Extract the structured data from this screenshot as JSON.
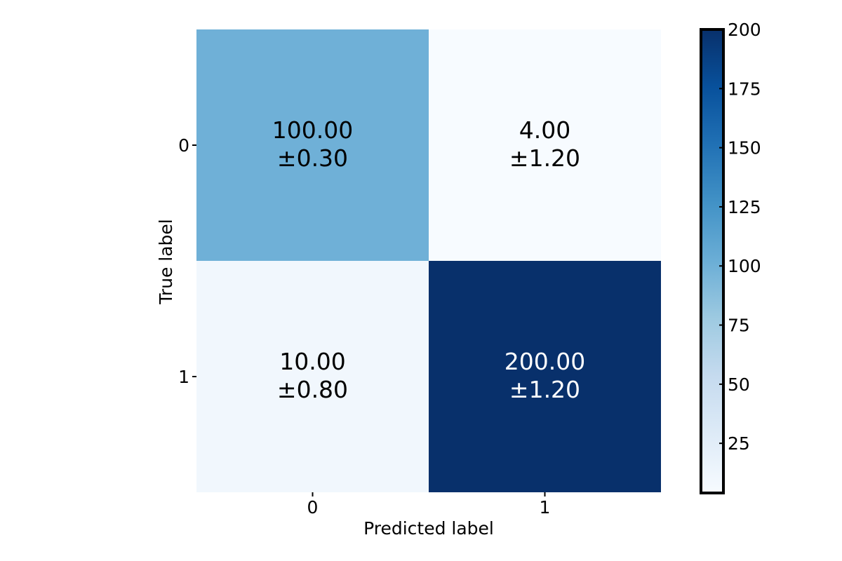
{
  "chart_data": {
    "type": "heatmap",
    "title": "",
    "xlabel": "Predicted label",
    "ylabel": "True label",
    "x_categories": [
      "0",
      "1"
    ],
    "y_categories": [
      "0",
      "1"
    ],
    "values": [
      [
        100.0,
        4.0
      ],
      [
        10.0,
        200.0
      ]
    ],
    "std": [
      [
        0.3,
        1.2
      ],
      [
        0.8,
        1.2
      ]
    ],
    "cell_labels": [
      [
        {
          "mean": "100.00",
          "std": "±0.30"
        },
        {
          "mean": "4.00",
          "std": "±1.20"
        }
      ],
      [
        {
          "mean": "10.00",
          "std": "±0.80"
        },
        {
          "mean": "200.00",
          "std": "±1.20"
        }
      ]
    ],
    "colormap": "Blues",
    "colorbar": {
      "range": [
        4,
        200
      ],
      "ticks": [
        "25",
        "50",
        "75",
        "100",
        "125",
        "150",
        "175",
        "200"
      ]
    },
    "grid": false
  }
}
